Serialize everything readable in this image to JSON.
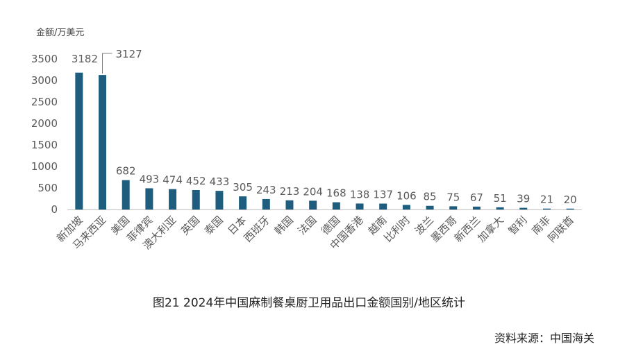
{
  "caption": "图21 2024年中国麻制餐桌厨卫用品出口金额国别/地区统计",
  "source": "资料来源：中国海关",
  "colors": {
    "bar": "#1f5d7e",
    "axis": "#bfbfbf",
    "text": "#595959"
  },
  "chart_data": {
    "type": "bar",
    "title": "",
    "ylabel": "金额/万美元",
    "xlabel": "",
    "ylim": [
      0,
      3500
    ],
    "yticks": [
      0,
      500,
      1000,
      1500,
      2000,
      2500,
      3000,
      3500
    ],
    "grid": false,
    "categories": [
      "新加坡",
      "马来西亚",
      "美国",
      "菲律宾",
      "澳大利亚",
      "英国",
      "泰国",
      "日本",
      "西班牙",
      "韩国",
      "法国",
      "德国",
      "中国香港",
      "越南",
      "比利时",
      "波兰",
      "墨西哥",
      "新西兰",
      "加拿大",
      "智利",
      "南非",
      "阿联酋"
    ],
    "values": [
      3182,
      3127,
      682,
      493,
      474,
      452,
      433,
      305,
      243,
      213,
      204,
      168,
      138,
      137,
      106,
      85,
      75,
      67,
      51,
      39,
      21,
      20
    ]
  }
}
